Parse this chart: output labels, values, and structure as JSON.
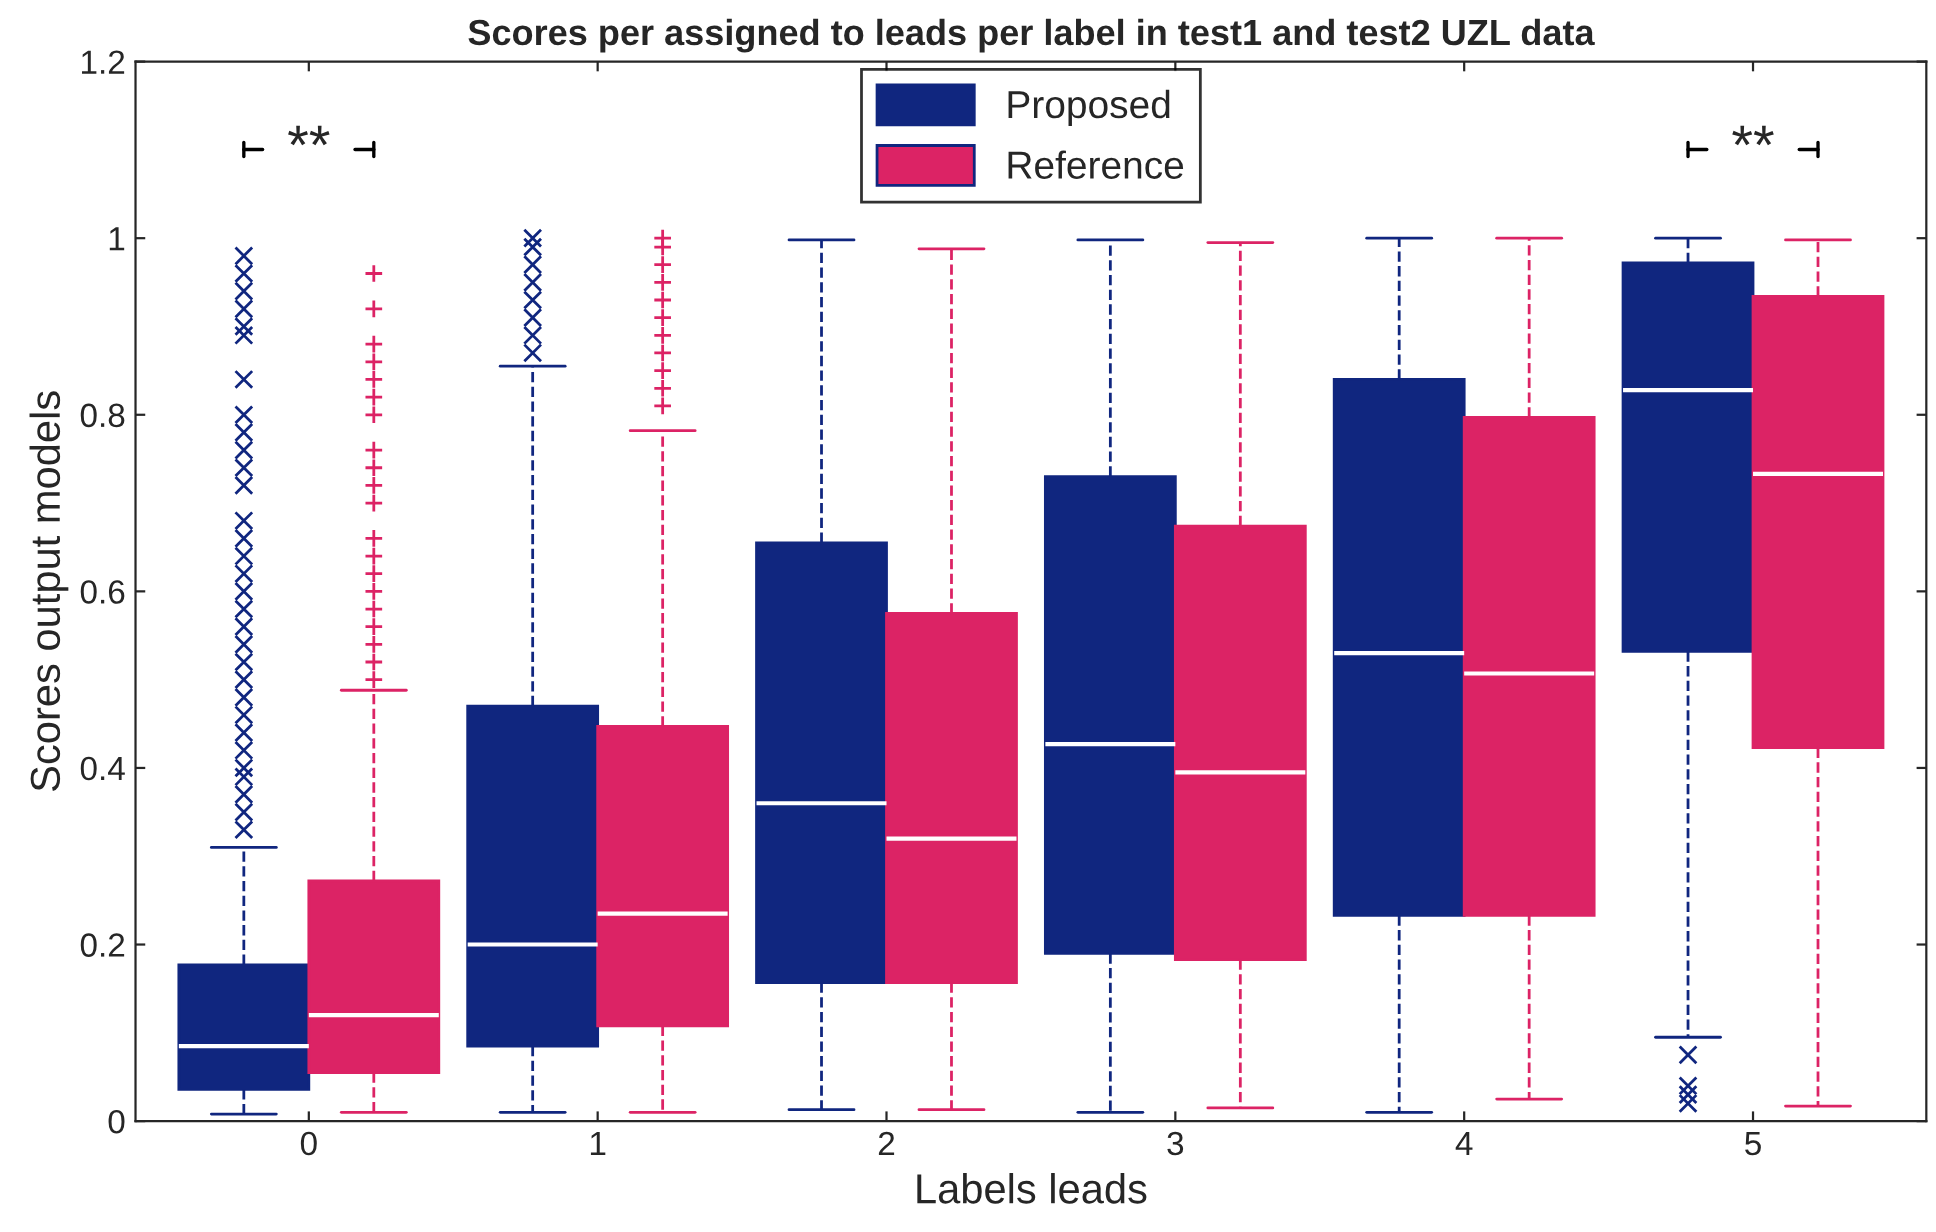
{
  "chart_data": {
    "type": "box",
    "title": "Scores per assigned to leads per label in test1 and test2 UZL data",
    "xlabel": "Labels leads",
    "ylabel": "Scores output models",
    "categories": [
      "0",
      "1",
      "2",
      "3",
      "4",
      "5"
    ],
    "series": [
      {
        "name": "Proposed",
        "color": "#10267f",
        "boxes": [
          {
            "low": 0.008,
            "q1": 0.036,
            "median": 0.085,
            "q3": 0.177,
            "high": 0.31,
            "outliers": [
              0.33,
              0.35,
              0.37,
              0.39,
              0.4,
              0.42,
              0.44,
              0.46,
              0.48,
              0.5,
              0.52,
              0.54,
              0.56,
              0.58,
              0.6,
              0.62,
              0.64,
              0.66,
              0.68,
              0.72,
              0.74,
              0.76,
              0.78,
              0.8,
              0.84,
              0.89,
              0.9,
              0.92,
              0.94,
              0.96,
              0.98
            ]
          },
          {
            "low": 0.01,
            "q1": 0.085,
            "median": 0.2,
            "q3": 0.47,
            "high": 0.855,
            "outliers": [
              0.87,
              0.89,
              0.91,
              0.93,
              0.95,
              0.97,
              0.99,
              1.0
            ]
          },
          {
            "low": 0.013,
            "q1": 0.157,
            "median": 0.36,
            "q3": 0.655,
            "high": 0.998
          },
          {
            "low": 0.01,
            "q1": 0.19,
            "median": 0.427,
            "q3": 0.73,
            "high": 0.998
          },
          {
            "low": 0.01,
            "q1": 0.233,
            "median": 0.53,
            "q3": 0.84,
            "high": 1.0
          },
          {
            "low": 0.095,
            "q1": 0.532,
            "median": 0.828,
            "q3": 0.972,
            "high": 1.0,
            "outliers": [
              0.075,
              0.04,
              0.03,
              0.02
            ]
          }
        ]
      },
      {
        "name": "Reference",
        "color": "#dc2365",
        "boxes": [
          {
            "low": 0.01,
            "q1": 0.055,
            "median": 0.12,
            "q3": 0.272,
            "high": 0.488,
            "outliers": [
              0.5,
              0.52,
              0.54,
              0.56,
              0.58,
              0.6,
              0.62,
              0.64,
              0.66,
              0.7,
              0.72,
              0.74,
              0.76,
              0.8,
              0.82,
              0.84,
              0.86,
              0.88,
              0.92,
              0.96
            ]
          },
          {
            "low": 0.01,
            "q1": 0.108,
            "median": 0.235,
            "q3": 0.447,
            "high": 0.782,
            "outliers": [
              0.81,
              0.83,
              0.85,
              0.87,
              0.89,
              0.91,
              0.93,
              0.95,
              0.97,
              0.99,
              1.0
            ]
          },
          {
            "low": 0.013,
            "q1": 0.157,
            "median": 0.32,
            "q3": 0.575,
            "high": 0.988
          },
          {
            "low": 0.015,
            "q1": 0.183,
            "median": 0.395,
            "q3": 0.674,
            "high": 0.995
          },
          {
            "low": 0.025,
            "q1": 0.233,
            "median": 0.507,
            "q3": 0.797,
            "high": 1.0
          },
          {
            "low": 0.017,
            "q1": 0.423,
            "median": 0.733,
            "q3": 0.934,
            "high": 0.998
          }
        ]
      }
    ],
    "ylim": [
      0,
      1.2
    ],
    "yticks": [
      0,
      0.2,
      0.4,
      0.6,
      0.8,
      1,
      1.2
    ],
    "annotations": [
      "**",
      "**"
    ],
    "legend": "top",
    "grid": false
  }
}
